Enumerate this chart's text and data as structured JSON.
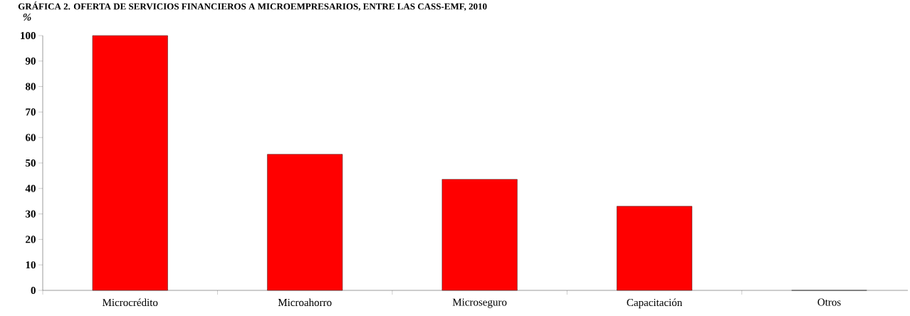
{
  "chart_data": {
    "type": "bar",
    "title": "GRÁFICA 2. OFERTA DE SERVICIOS FINANCIEROS A MICROEMPRESARIOS, ENTRE LAS CASS-EMF, 2010",
    "ylabel": "%",
    "categories": [
      "Microcrédito",
      "Microahorro",
      "Microseguro",
      "Capacitación",
      "Otros"
    ],
    "values": [
      100,
      53.4,
      43.6,
      33,
      0
    ],
    "color": "#ff0000",
    "ylim": [
      0,
      100
    ],
    "yticks": [
      0,
      10,
      20,
      30,
      40,
      50,
      60,
      70,
      80,
      90,
      100
    ]
  }
}
